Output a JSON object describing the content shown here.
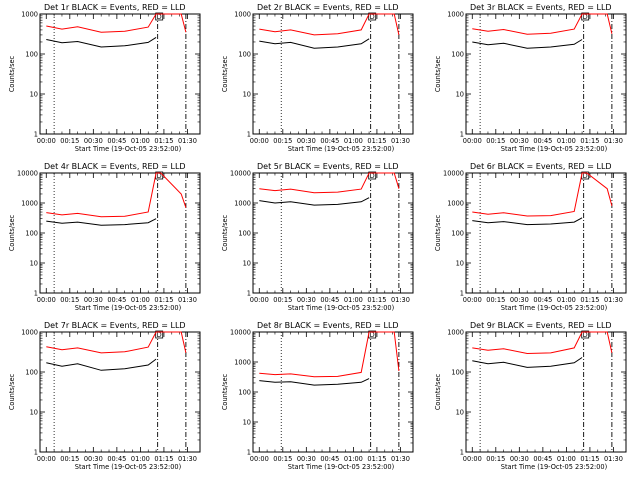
{
  "figure": {
    "x_axis_label": "Start Time (19-Oct-05 23:52:00)",
    "y_axis_label": "Counts/sec",
    "colors": {
      "events": "#000000",
      "lld": "#ff0000",
      "background": "#ffffff"
    }
  },
  "chart_data": [
    {
      "type": "line",
      "title": "Det 1r BLACK = Events, RED = LLD",
      "ylabel": "Counts/sec",
      "xlabel": "Start Time (19-Oct-05 23:52:00)",
      "yscale": "log",
      "ylim": [
        1,
        1000
      ],
      "xlim_minutes": [
        -4,
        98
      ],
      "x_tick_labels": [
        "00:00",
        "00:15",
        "00:30",
        "00:45",
        "01:00",
        "01:15",
        "01:30"
      ],
      "y_tick_labels": [
        "1000",
        "100",
        "10",
        "1"
      ],
      "markers": {
        "dotted_line_time": "00:05",
        "dashdot_line_times": [
          "01:11",
          "01:29"
        ],
        "event_label": "D",
        "event_time": "01:12"
      },
      "series": [
        {
          "name": "Events",
          "color": "#000000",
          "x": [
            "00:00",
            "00:10",
            "00:20",
            "00:35",
            "00:50",
            "01:05",
            "01:10"
          ],
          "y": [
            230,
            190,
            205,
            150,
            160,
            195,
            260
          ]
        },
        {
          "name": "LLD",
          "color": "#ff0000",
          "x": [
            "00:00",
            "00:10",
            "00:20",
            "00:35",
            "00:50",
            "01:05",
            "01:10",
            "01:13",
            "01:26",
            "01:29"
          ],
          "y": [
            500,
            420,
            480,
            350,
            370,
            470,
            1000,
            1000,
            1000,
            350
          ]
        }
      ]
    },
    {
      "type": "line",
      "title": "Det 2r BLACK = Events, RED = LLD",
      "ylabel": "Counts/sec",
      "xlabel": "Start Time (19-Oct-05 23:52:00)",
      "yscale": "log",
      "ylim": [
        1,
        1000
      ],
      "xlim_minutes": [
        -4,
        98
      ],
      "x_tick_labels": [
        "00:00",
        "00:15",
        "00:30",
        "00:45",
        "01:00",
        "01:15",
        "01:30"
      ],
      "y_tick_labels": [
        "1000",
        "100",
        "10",
        "1"
      ],
      "markers": {
        "dotted_line_time": "00:14",
        "dashdot_line_times": [
          "01:11",
          "01:29"
        ],
        "event_label": "D",
        "event_time": "01:12"
      },
      "series": [
        {
          "name": "Events",
          "color": "#000000",
          "x": [
            "00:00",
            "00:10",
            "00:20",
            "00:35",
            "00:50",
            "01:05",
            "01:10"
          ],
          "y": [
            210,
            180,
            195,
            140,
            150,
            180,
            240
          ]
        },
        {
          "name": "LLD",
          "color": "#ff0000",
          "x": [
            "00:00",
            "00:10",
            "00:20",
            "00:35",
            "00:50",
            "01:05",
            "01:10",
            "01:13",
            "01:26",
            "01:29"
          ],
          "y": [
            420,
            360,
            400,
            300,
            320,
            400,
            1000,
            1000,
            1000,
            300
          ]
        }
      ]
    },
    {
      "type": "line",
      "title": "Det 3r BLACK = Events, RED = LLD",
      "ylabel": "Counts/sec",
      "xlabel": "Start Time (19-Oct-05 23:52:00)",
      "yscale": "log",
      "ylim": [
        1,
        1000
      ],
      "xlim_minutes": [
        -4,
        98
      ],
      "x_tick_labels": [
        "00:00",
        "00:15",
        "00:30",
        "00:45",
        "01:00",
        "01:15",
        "01:30"
      ],
      "y_tick_labels": [
        "1000",
        "100",
        "10",
        "1"
      ],
      "markers": {
        "dotted_line_time": "00:05",
        "dashdot_line_times": [
          "01:11",
          "01:29"
        ],
        "event_label": "D",
        "event_time": "01:12"
      },
      "series": [
        {
          "name": "Events",
          "color": "#000000",
          "x": [
            "00:00",
            "00:10",
            "00:20",
            "00:35",
            "00:50",
            "01:05",
            "01:10"
          ],
          "y": [
            200,
            170,
            185,
            140,
            150,
            175,
            230
          ]
        },
        {
          "name": "LLD",
          "color": "#ff0000",
          "x": [
            "00:00",
            "00:10",
            "00:20",
            "00:35",
            "00:50",
            "01:05",
            "01:10",
            "01:13",
            "01:26",
            "01:29"
          ],
          "y": [
            430,
            370,
            410,
            310,
            330,
            420,
            1000,
            1000,
            1000,
            320
          ]
        }
      ]
    },
    {
      "type": "line",
      "title": "Det 4r BLACK = Events, RED = LLD",
      "ylabel": "Counts/sec",
      "xlabel": "Start Time (19-Oct-05 23:52:00)",
      "yscale": "log",
      "ylim": [
        1,
        10000
      ],
      "xlim_minutes": [
        -4,
        98
      ],
      "x_tick_labels": [
        "00:00",
        "00:15",
        "00:30",
        "00:45",
        "01:00",
        "01:15",
        "01:30"
      ],
      "y_tick_labels": [
        "10000",
        "1000",
        "100",
        "10",
        "1"
      ],
      "markers": {
        "dotted_line_time": "00:05",
        "dashdot_line_times": [
          "01:11",
          "01:29"
        ],
        "event_label": "D",
        "event_time": "01:12"
      },
      "series": [
        {
          "name": "Events",
          "color": "#000000",
          "x": [
            "00:00",
            "00:10",
            "00:20",
            "00:35",
            "00:50",
            "01:05",
            "01:10"
          ],
          "y": [
            250,
            210,
            230,
            180,
            190,
            220,
            300
          ]
        },
        {
          "name": "LLD",
          "color": "#ff0000",
          "x": [
            "00:00",
            "00:10",
            "00:20",
            "00:35",
            "00:50",
            "01:05",
            "01:10",
            "01:13",
            "01:26",
            "01:29"
          ],
          "y": [
            480,
            400,
            450,
            350,
            360,
            500,
            10000,
            10000,
            2000,
            700
          ]
        }
      ]
    },
    {
      "type": "line",
      "title": "Det 5r BLACK = Events, RED = LLD",
      "ylabel": "Counts/sec",
      "xlabel": "Start Time (19-Oct-05 23:52:00)",
      "yscale": "log",
      "ylim": [
        1,
        10000
      ],
      "xlim_minutes": [
        -4,
        98
      ],
      "x_tick_labels": [
        "00:00",
        "00:15",
        "00:30",
        "00:45",
        "01:00",
        "01:15",
        "01:30"
      ],
      "y_tick_labels": [
        "10000",
        "1000",
        "100",
        "10",
        "1"
      ],
      "markers": {
        "dotted_line_time": "00:14",
        "dashdot_line_times": [
          "01:11",
          "01:29"
        ],
        "event_label": "D",
        "event_time": "01:12"
      },
      "series": [
        {
          "name": "Events",
          "color": "#000000",
          "x": [
            "00:00",
            "00:10",
            "00:20",
            "00:35",
            "00:50",
            "01:05",
            "01:10"
          ],
          "y": [
            1200,
            1000,
            1100,
            850,
            900,
            1100,
            1500
          ]
        },
        {
          "name": "LLD",
          "color": "#ff0000",
          "x": [
            "00:00",
            "00:10",
            "00:20",
            "00:35",
            "00:50",
            "01:05",
            "01:10",
            "01:13",
            "01:26",
            "01:29"
          ],
          "y": [
            3000,
            2600,
            2900,
            2200,
            2300,
            2900,
            10000,
            10000,
            10000,
            3000
          ]
        }
      ]
    },
    {
      "type": "line",
      "title": "Det 6r BLACK = Events, RED = LLD",
      "ylabel": "Counts/sec",
      "xlabel": "Start Time (19-Oct-05 23:52:00)",
      "yscale": "log",
      "ylim": [
        1,
        10000
      ],
      "xlim_minutes": [
        -4,
        98
      ],
      "x_tick_labels": [
        "00:00",
        "00:15",
        "00:30",
        "00:45",
        "01:00",
        "01:15",
        "01:30"
      ],
      "y_tick_labels": [
        "10000",
        "1000",
        "100",
        "10",
        "1"
      ],
      "markers": {
        "dotted_line_time": "00:05",
        "dashdot_line_times": [
          "01:11",
          "01:29"
        ],
        "event_label": "D",
        "event_time": "01:12"
      },
      "series": [
        {
          "name": "Events",
          "color": "#000000",
          "x": [
            "00:00",
            "00:10",
            "00:20",
            "00:35",
            "00:50",
            "01:05",
            "01:10"
          ],
          "y": [
            260,
            220,
            240,
            190,
            200,
            230,
            320
          ]
        },
        {
          "name": "LLD",
          "color": "#ff0000",
          "x": [
            "00:00",
            "00:10",
            "00:20",
            "00:35",
            "00:50",
            "01:05",
            "01:10",
            "01:13",
            "01:26",
            "01:29"
          ],
          "y": [
            500,
            420,
            470,
            370,
            380,
            520,
            10000,
            10000,
            3000,
            800
          ]
        }
      ]
    },
    {
      "type": "line",
      "title": "Det 7r BLACK = Events, RED = LLD",
      "ylabel": "Counts/sec",
      "xlabel": "Start Time (19-Oct-05 23:52:00)",
      "yscale": "log",
      "ylim": [
        1,
        1000
      ],
      "xlim_minutes": [
        -4,
        98
      ],
      "x_tick_labels": [
        "00:00",
        "00:15",
        "00:30",
        "00:45",
        "01:00",
        "01:15",
        "01:30"
      ],
      "y_tick_labels": [
        "1000",
        "100",
        "10",
        "1"
      ],
      "markers": {
        "dotted_line_time": "00:05",
        "dashdot_line_times": [
          "01:11",
          "01:29"
        ],
        "event_label": "D",
        "event_time": "01:12"
      },
      "series": [
        {
          "name": "Events",
          "color": "#000000",
          "x": [
            "00:00",
            "00:10",
            "00:20",
            "00:35",
            "00:50",
            "01:05",
            "01:10"
          ],
          "y": [
            170,
            140,
            160,
            110,
            120,
            150,
            210
          ]
        },
        {
          "name": "LLD",
          "color": "#ff0000",
          "x": [
            "00:00",
            "00:10",
            "00:20",
            "00:35",
            "00:50",
            "01:05",
            "01:10",
            "01:13",
            "01:26",
            "01:29"
          ],
          "y": [
            430,
            360,
            400,
            300,
            320,
            420,
            1000,
            1000,
            1000,
            300
          ]
        }
      ]
    },
    {
      "type": "line",
      "title": "Det 8r BLACK = Events, RED = LLD",
      "ylabel": "Counts/sec",
      "xlabel": "Start Time (19-Oct-05 23:52:00)",
      "yscale": "log",
      "ylim": [
        1,
        10000
      ],
      "xlim_minutes": [
        -4,
        98
      ],
      "x_tick_labels": [
        "00:00",
        "00:15",
        "00:30",
        "00:45",
        "01:00",
        "01:15",
        "01:30"
      ],
      "y_tick_labels": [
        "10000",
        "1000",
        "100",
        "10",
        "1"
      ],
      "markers": {
        "dotted_line_time": "00:14",
        "dashdot_line_times": [
          "01:11",
          "01:29"
        ],
        "event_label": "D",
        "event_time": "01:12"
      },
      "series": [
        {
          "name": "Events",
          "color": "#000000",
          "x": [
            "00:00",
            "00:10",
            "00:20",
            "00:35",
            "00:50",
            "01:05",
            "01:10"
          ],
          "y": [
            240,
            210,
            220,
            170,
            180,
            210,
            280
          ]
        },
        {
          "name": "LLD",
          "color": "#ff0000",
          "x": [
            "00:00",
            "00:10",
            "00:20",
            "00:35",
            "00:50",
            "01:05",
            "01:10",
            "01:13",
            "01:26",
            "01:29"
          ],
          "y": [
            420,
            380,
            400,
            320,
            330,
            450,
            10000,
            10000,
            10000,
            500
          ]
        }
      ]
    },
    {
      "type": "line",
      "title": "Det 9r BLACK = Events, RED = LLD",
      "ylabel": "Counts/sec",
      "xlabel": "Start Time (19-Oct-05 23:52:00)",
      "yscale": "log",
      "ylim": [
        1,
        1000
      ],
      "xlim_minutes": [
        -4,
        98
      ],
      "x_tick_labels": [
        "00:00",
        "00:15",
        "00:30",
        "00:45",
        "01:00",
        "01:15",
        "01:30"
      ],
      "y_tick_labels": [
        "1000",
        "100",
        "10",
        "1"
      ],
      "markers": {
        "dotted_line_time": "00:05",
        "dashdot_line_times": [
          "01:11",
          "01:29"
        ],
        "event_label": "D",
        "event_time": "01:12"
      },
      "series": [
        {
          "name": "Events",
          "color": "#000000",
          "x": [
            "00:00",
            "00:10",
            "00:20",
            "00:35",
            "00:50",
            "01:05",
            "01:10"
          ],
          "y": [
            190,
            160,
            175,
            130,
            140,
            170,
            230
          ]
        },
        {
          "name": "LLD",
          "color": "#ff0000",
          "x": [
            "00:00",
            "00:10",
            "00:20",
            "00:35",
            "00:50",
            "01:05",
            "01:10",
            "01:13",
            "01:26",
            "01:29"
          ],
          "y": [
            400,
            350,
            380,
            290,
            300,
            400,
            1000,
            1000,
            1000,
            300
          ]
        }
      ]
    }
  ]
}
